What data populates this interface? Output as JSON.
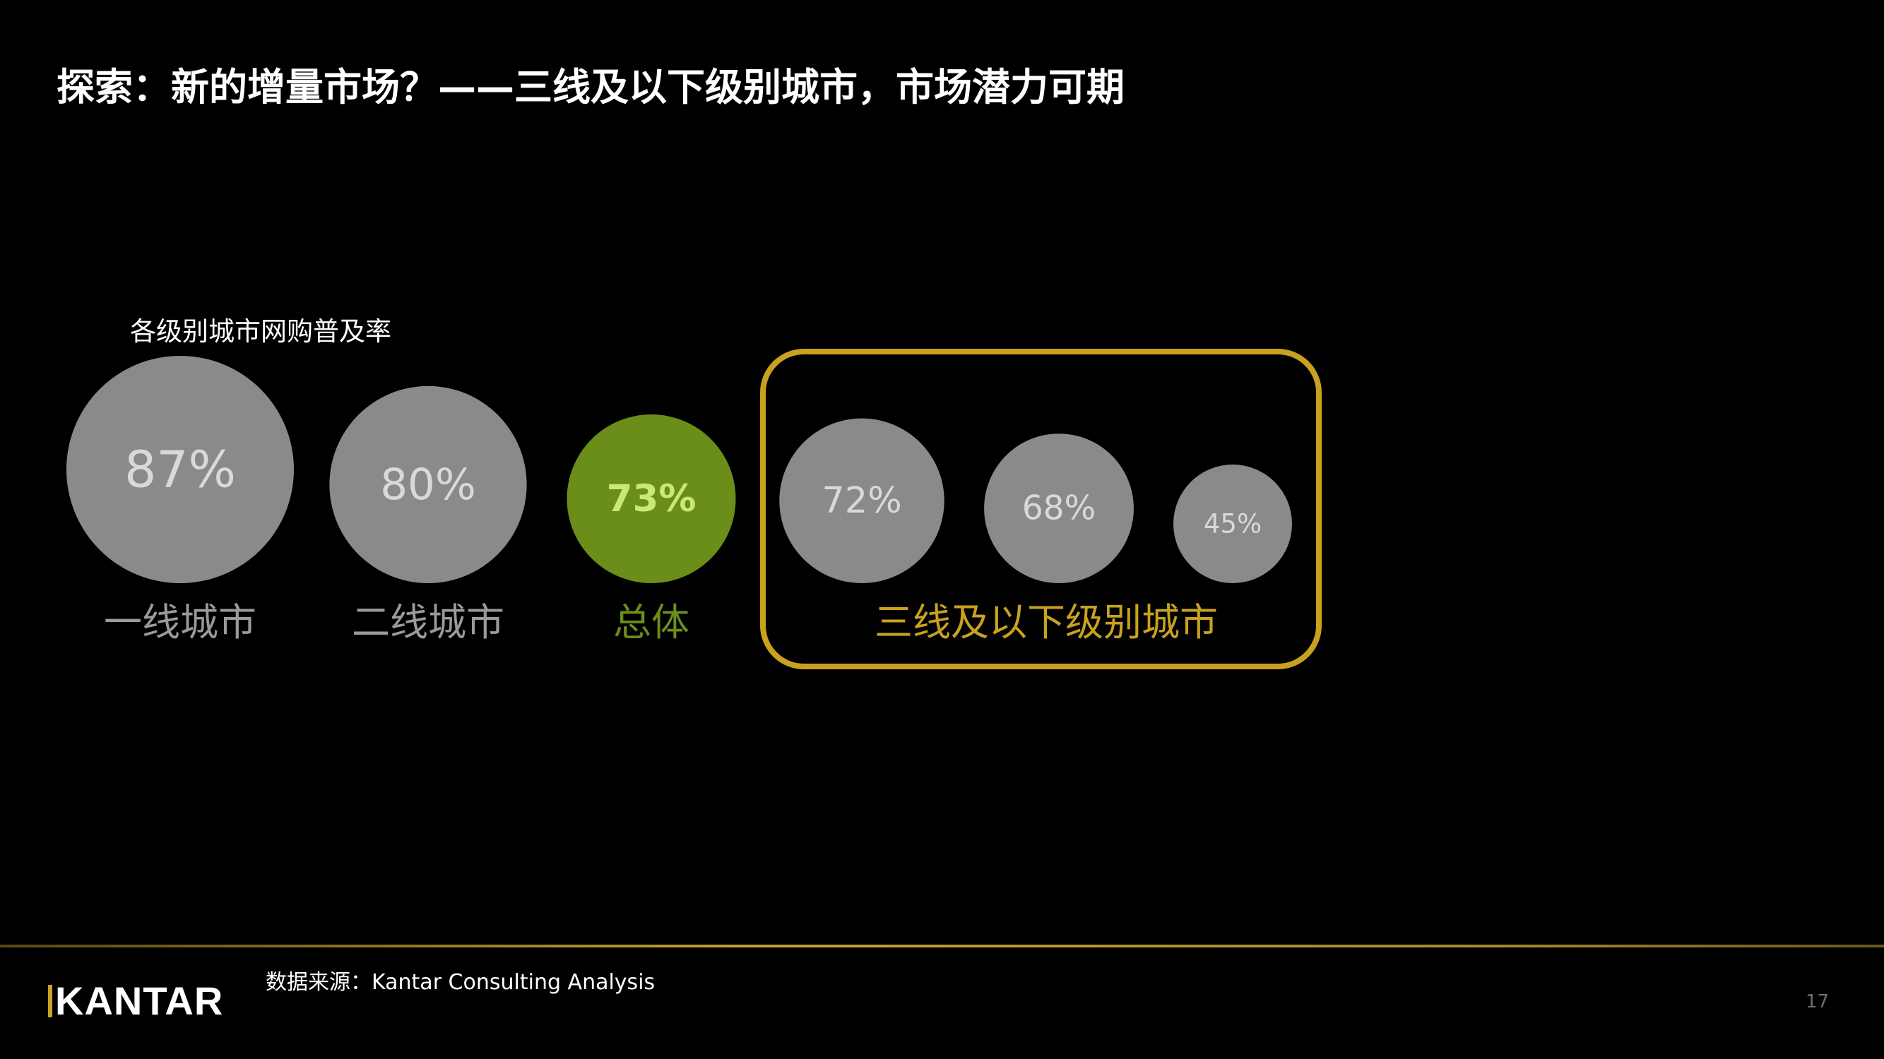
{
  "slide": {
    "title": "探索：新的增量市场？——三线及以下级别城市，市场潜力可期",
    "chart_label": "各级别城市网购普及率",
    "source": "数据来源：Kantar Consulting Analysis",
    "logo": "KANTAR",
    "page_number": "17"
  },
  "colors": {
    "background": "#000000",
    "bubble_gray": "#8a8a8a",
    "bubble_value_gray": "#d9d9d9",
    "category_gray": "#9a9a9a",
    "highlight_green": "#6b8e1a",
    "highlight_green_text": "#c8e87a",
    "gold": "#c8a21f"
  },
  "chart_data": {
    "type": "bubble",
    "title": "各级别城市网购普及率",
    "unit": "%",
    "series": [
      {
        "name": "",
        "values": [
          87,
          80,
          73,
          72,
          68,
          45
        ]
      }
    ],
    "value_labels": [
      "87%",
      "80%",
      "73%",
      "72%",
      "68%",
      "45%"
    ],
    "categories": [
      "一线城市",
      "二线城市",
      "总体",
      "",
      "",
      ""
    ],
    "group_labels": [
      {
        "label": "三线及以下级别城市",
        "members": [
          3,
          4,
          5
        ]
      }
    ],
    "highlighted_index": 2
  }
}
